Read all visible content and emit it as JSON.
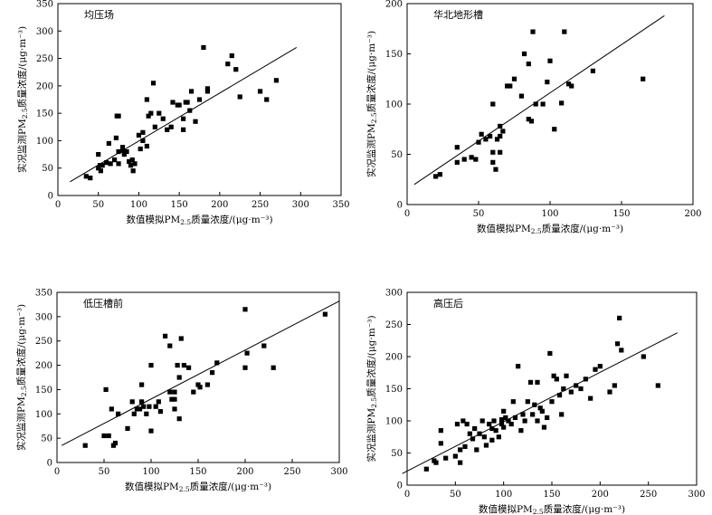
{
  "chart_data": [
    {
      "type": "scatter",
      "title": "均压场",
      "xlabel_pre": "数值模拟PM",
      "xlabel_sub": "2.5",
      "xlabel_post": "质量浓度/(μg·m⁻³)",
      "ylabel_pre": "实况监测PM",
      "ylabel_sub": "2.5",
      "ylabel_post": "质量浓度/(μg·m⁻³)",
      "xlim": [
        0,
        350
      ],
      "ylim": [
        0,
        350
      ],
      "xticks": [
        0,
        50,
        100,
        150,
        200,
        250,
        300,
        350
      ],
      "yticks": [
        0,
        50,
        100,
        150,
        200,
        250,
        300,
        350
      ],
      "fit": [
        [
          15,
          25
        ],
        [
          295,
          270
        ]
      ],
      "points": [
        [
          35,
          35
        ],
        [
          40,
          32
        ],
        [
          50,
          75
        ],
        [
          50,
          50
        ],
        [
          52,
          55
        ],
        [
          53,
          45
        ],
        [
          55,
          55
        ],
        [
          60,
          60
        ],
        [
          63,
          95
        ],
        [
          65,
          58
        ],
        [
          70,
          65
        ],
        [
          72,
          105
        ],
        [
          73,
          145
        ],
        [
          75,
          145
        ],
        [
          75,
          80
        ],
        [
          75,
          58
        ],
        [
          80,
          88
        ],
        [
          80,
          82
        ],
        [
          82,
          75
        ],
        [
          85,
          80
        ],
        [
          88,
          62
        ],
        [
          90,
          55
        ],
        [
          92,
          65
        ],
        [
          93,
          45
        ],
        [
          95,
          58
        ],
        [
          100,
          110
        ],
        [
          102,
          85
        ],
        [
          105,
          115
        ],
        [
          105,
          100
        ],
        [
          110,
          175
        ],
        [
          110,
          90
        ],
        [
          112,
          145
        ],
        [
          115,
          150
        ],
        [
          118,
          205
        ],
        [
          120,
          125
        ],
        [
          125,
          150
        ],
        [
          130,
          140
        ],
        [
          135,
          120
        ],
        [
          140,
          125
        ],
        [
          142,
          170
        ],
        [
          148,
          165
        ],
        [
          150,
          165
        ],
        [
          155,
          140
        ],
        [
          158,
          170
        ],
        [
          160,
          170
        ],
        [
          163,
          155
        ],
        [
          165,
          190
        ],
        [
          170,
          135
        ],
        [
          175,
          175
        ],
        [
          180,
          270
        ],
        [
          185,
          190
        ],
        [
          185,
          195
        ],
        [
          210,
          240
        ],
        [
          215,
          255
        ],
        [
          220,
          230
        ],
        [
          225,
          180
        ],
        [
          250,
          190
        ],
        [
          258,
          175
        ],
        [
          270,
          210
        ],
        [
          155,
          120
        ]
      ]
    },
    {
      "type": "scatter",
      "title": "华北地形槽",
      "xlabel_pre": "数值模拟PM",
      "xlabel_sub": "2.5",
      "xlabel_post": "质量浓度/(μg·m⁻³)",
      "ylabel_pre": "实况监测PM",
      "ylabel_sub": "2.5",
      "ylabel_post": "质量浓度/(μg·m⁻³)",
      "xlim": [
        0,
        200
      ],
      "ylim": [
        0,
        200
      ],
      "xticks": [
        0,
        50,
        100,
        150,
        200
      ],
      "yticks": [
        0,
        50,
        100,
        150,
        200
      ],
      "fit": [
        [
          5,
          20
        ],
        [
          180,
          188
        ]
      ],
      "points": [
        [
          20,
          28
        ],
        [
          23,
          30
        ],
        [
          35,
          57
        ],
        [
          35,
          42
        ],
        [
          40,
          45
        ],
        [
          45,
          47
        ],
        [
          48,
          45
        ],
        [
          50,
          62
        ],
        [
          52,
          70
        ],
        [
          55,
          65
        ],
        [
          58,
          68
        ],
        [
          60,
          100
        ],
        [
          60,
          42
        ],
        [
          62,
          35
        ],
        [
          63,
          65
        ],
        [
          65,
          78
        ],
        [
          65,
          68
        ],
        [
          67,
          73
        ],
        [
          70,
          118
        ],
        [
          72,
          118
        ],
        [
          75,
          125
        ],
        [
          80,
          108
        ],
        [
          82,
          150
        ],
        [
          85,
          85
        ],
        [
          85,
          140
        ],
        [
          87,
          83
        ],
        [
          88,
          172
        ],
        [
          90,
          100
        ],
        [
          95,
          100
        ],
        [
          98,
          122
        ],
        [
          100,
          143
        ],
        [
          103,
          75
        ],
        [
          108,
          101
        ],
        [
          110,
          172
        ],
        [
          113,
          120
        ],
        [
          115,
          118
        ],
        [
          130,
          133
        ],
        [
          165,
          125
        ],
        [
          60,
          52
        ],
        [
          65,
          52
        ]
      ]
    },
    {
      "type": "scatter",
      "title": "低压槽前",
      "xlabel_pre": "数值模拟PM",
      "xlabel_sub": "2.5",
      "xlabel_post": "质量浓度/(μg·m⁻³)",
      "ylabel_pre": "实况监测PM",
      "ylabel_sub": "2.5",
      "ylabel_post": "质量浓度/(μg·m⁻³)",
      "xlim": [
        0,
        300
      ],
      "ylim": [
        0,
        350
      ],
      "xticks": [
        0,
        50,
        100,
        150,
        200,
        250,
        300
      ],
      "yticks": [
        0,
        50,
        100,
        150,
        200,
        250,
        300,
        350
      ],
      "fit": [
        [
          5,
          35
        ],
        [
          300,
          332
        ]
      ],
      "points": [
        [
          30,
          35
        ],
        [
          50,
          55
        ],
        [
          52,
          150
        ],
        [
          55,
          55
        ],
        [
          58,
          110
        ],
        [
          60,
          35
        ],
        [
          62,
          40
        ],
        [
          65,
          100
        ],
        [
          75,
          70
        ],
        [
          80,
          125
        ],
        [
          82,
          100
        ],
        [
          85,
          110
        ],
        [
          88,
          110
        ],
        [
          90,
          160
        ],
        [
          90,
          125
        ],
        [
          92,
          115
        ],
        [
          95,
          100
        ],
        [
          98,
          115
        ],
        [
          100,
          65
        ],
        [
          100,
          200
        ],
        [
          105,
          115
        ],
        [
          108,
          125
        ],
        [
          110,
          105
        ],
        [
          115,
          260
        ],
        [
          120,
          240
        ],
        [
          122,
          130
        ],
        [
          125,
          110
        ],
        [
          125,
          145
        ],
        [
          128,
          200
        ],
        [
          130,
          90
        ],
        [
          130,
          175
        ],
        [
          132,
          255
        ],
        [
          135,
          200
        ],
        [
          140,
          195
        ],
        [
          145,
          145
        ],
        [
          150,
          160
        ],
        [
          152,
          155
        ],
        [
          160,
          160
        ],
        [
          165,
          185
        ],
        [
          170,
          205
        ],
        [
          200,
          195
        ],
        [
          200,
          315
        ],
        [
          202,
          225
        ],
        [
          220,
          240
        ],
        [
          230,
          195
        ],
        [
          285,
          305
        ],
        [
          120,
          145
        ],
        [
          125,
          130
        ]
      ]
    },
    {
      "type": "scatter",
      "title": "高压后",
      "xlabel_pre": "数值模拟PM",
      "xlabel_sub": "2.5",
      "xlabel_post": "质量浓度/(μg·m⁻³)",
      "ylabel_pre": "实况监测PM",
      "ylabel_sub": "2.5",
      "ylabel_post": "质量浓度/(μg·m⁻³)",
      "xlim": [
        0,
        300
      ],
      "ylim": [
        0,
        300
      ],
      "xticks": [
        0,
        50,
        100,
        150,
        200,
        250,
        300
      ],
      "yticks": [
        0,
        50,
        100,
        150,
        200,
        250,
        300
      ],
      "fit": [
        [
          -5,
          18
        ],
        [
          280,
          237
        ]
      ],
      "points": [
        [
          20,
          25
        ],
        [
          28,
          38
        ],
        [
          30,
          35
        ],
        [
          35,
          65
        ],
        [
          35,
          85
        ],
        [
          40,
          42
        ],
        [
          50,
          45
        ],
        [
          52,
          95
        ],
        [
          55,
          35
        ],
        [
          55,
          55
        ],
        [
          58,
          100
        ],
        [
          60,
          60
        ],
        [
          62,
          95
        ],
        [
          65,
          80
        ],
        [
          68,
          72
        ],
        [
          70,
          88
        ],
        [
          72,
          55
        ],
        [
          75,
          80
        ],
        [
          78,
          100
        ],
        [
          80,
          75
        ],
        [
          82,
          62
        ],
        [
          85,
          95
        ],
        [
          88,
          70
        ],
        [
          90,
          100
        ],
        [
          92,
          85
        ],
        [
          95,
          75
        ],
        [
          98,
          95
        ],
        [
          100,
          90
        ],
        [
          100,
          115
        ],
        [
          102,
          105
        ],
        [
          105,
          100
        ],
        [
          108,
          95
        ],
        [
          110,
          130
        ],
        [
          112,
          105
        ],
        [
          115,
          185
        ],
        [
          118,
          85
        ],
        [
          120,
          110
        ],
        [
          122,
          100
        ],
        [
          125,
          130
        ],
        [
          128,
          160
        ],
        [
          130,
          110
        ],
        [
          132,
          125
        ],
        [
          135,
          100
        ],
        [
          138,
          120
        ],
        [
          140,
          115
        ],
        [
          142,
          90
        ],
        [
          145,
          105
        ],
        [
          148,
          205
        ],
        [
          150,
          130
        ],
        [
          152,
          170
        ],
        [
          155,
          165
        ],
        [
          158,
          140
        ],
        [
          160,
          110
        ],
        [
          162,
          150
        ],
        [
          165,
          170
        ],
        [
          170,
          145
        ],
        [
          175,
          155
        ],
        [
          180,
          150
        ],
        [
          185,
          165
        ],
        [
          190,
          135
        ],
        [
          195,
          180
        ],
        [
          200,
          185
        ],
        [
          210,
          145
        ],
        [
          215,
          155
        ],
        [
          218,
          220
        ],
        [
          220,
          260
        ],
        [
          222,
          210
        ],
        [
          245,
          200
        ],
        [
          260,
          155
        ],
        [
          98,
          102
        ],
        [
          88,
          88
        ],
        [
          135,
          160
        ]
      ]
    }
  ]
}
